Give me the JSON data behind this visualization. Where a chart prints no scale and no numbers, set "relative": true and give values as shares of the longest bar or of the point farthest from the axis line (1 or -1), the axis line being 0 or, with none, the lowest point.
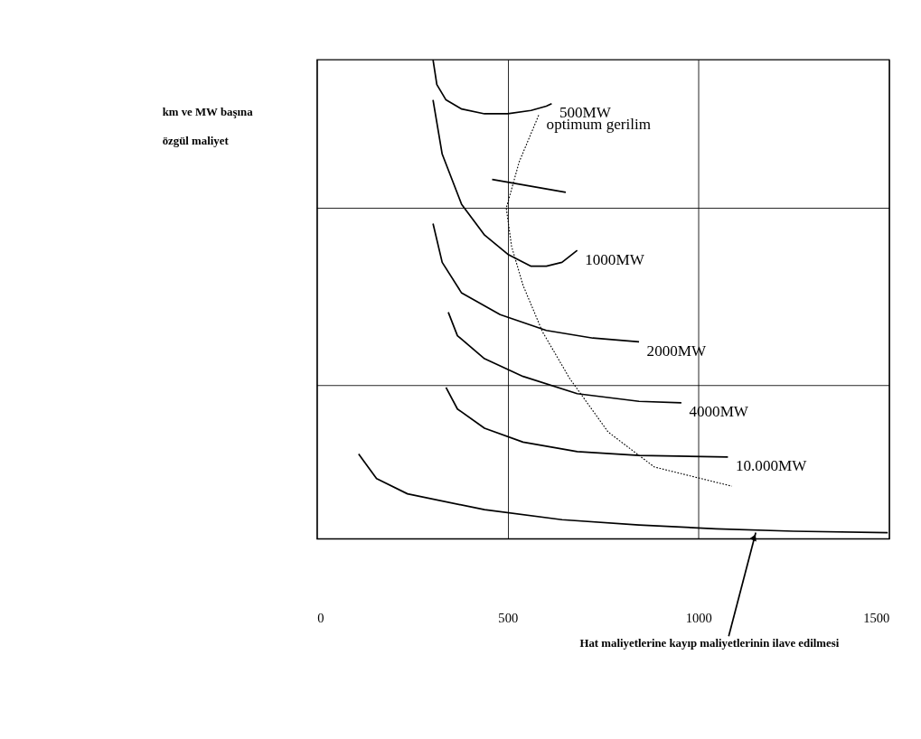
{
  "chart_data": {
    "type": "line",
    "relative": true,
    "ylabel": "km ve MW başına özgül maliyet",
    "xlim": [
      0,
      1500
    ],
    "xticks": [
      0,
      500,
      1000,
      1500
    ],
    "grid": "x",
    "marker": "none",
    "series": [
      {
        "name": "500MW",
        "color": "#000000",
        "line_style": "solid",
        "x": [
          304,
          314,
          338,
          379,
          439,
          500,
          561,
          601,
          615
        ],
        "values": [
          1.0,
          0.948,
          0.916,
          0.897,
          0.887,
          0.887,
          0.894,
          0.903,
          0.908
        ]
      },
      {
        "color": "#000000",
        "line_style": "solid",
        "x": [
          459,
          652
        ],
        "values": [
          0.75,
          0.723
        ]
      },
      {
        "name": "1000MW",
        "color": "#000000",
        "line_style": "solid",
        "x": [
          304,
          328,
          379,
          439,
          500,
          561,
          601,
          642,
          682
        ],
        "values": [
          0.916,
          0.803,
          0.698,
          0.634,
          0.594,
          0.569,
          0.569,
          0.577,
          0.602
        ]
      },
      {
        "name": "2000MW",
        "color": "#000000",
        "line_style": "solid",
        "x": [
          304,
          328,
          379,
          480,
          601,
          723,
          844
        ],
        "values": [
          0.658,
          0.577,
          0.513,
          0.468,
          0.435,
          0.419,
          0.411
        ]
      },
      {
        "name": "4000MW",
        "color": "#000000",
        "line_style": "solid",
        "x": [
          344,
          368,
          439,
          540,
          682,
          844,
          955
        ],
        "values": [
          0.473,
          0.424,
          0.376,
          0.339,
          0.303,
          0.287,
          0.284
        ]
      },
      {
        "name": "10.000MW",
        "color": "#000000",
        "line_style": "solid",
        "x": [
          338,
          368,
          439,
          540,
          682,
          844,
          1077
        ],
        "values": [
          0.316,
          0.271,
          0.231,
          0.202,
          0.182,
          0.174,
          0.171
        ]
      },
      {
        "color": "#000000",
        "line_style": "solid",
        "x": [
          109,
          156,
          237,
          439,
          642,
          844,
          1046,
          1249,
          1496
        ],
        "values": [
          0.177,
          0.126,
          0.094,
          0.061,
          0.04,
          0.029,
          0.021,
          0.016,
          0.013
        ]
      },
      {
        "name": "optimum gerilim",
        "color": "#000000",
        "line_style": "dotted",
        "x": [
          581,
          530,
          496,
          510,
          540,
          591,
          662,
          763,
          884,
          1087
        ],
        "values": [
          0.884,
          0.787,
          0.69,
          0.61,
          0.529,
          0.432,
          0.335,
          0.223,
          0.15,
          0.11
        ]
      }
    ],
    "ref_lines": [
      {
        "axis": "y",
        "value": 0.69,
        "color": "#000000"
      },
      {
        "axis": "y",
        "value": 0.32,
        "color": "#000000"
      }
    ],
    "annotations": [
      {
        "text": "Hat maliyetlerine kayıp maliyetlerinin ilave edilmesi",
        "x": 1150,
        "y": 0.013
      }
    ]
  }
}
